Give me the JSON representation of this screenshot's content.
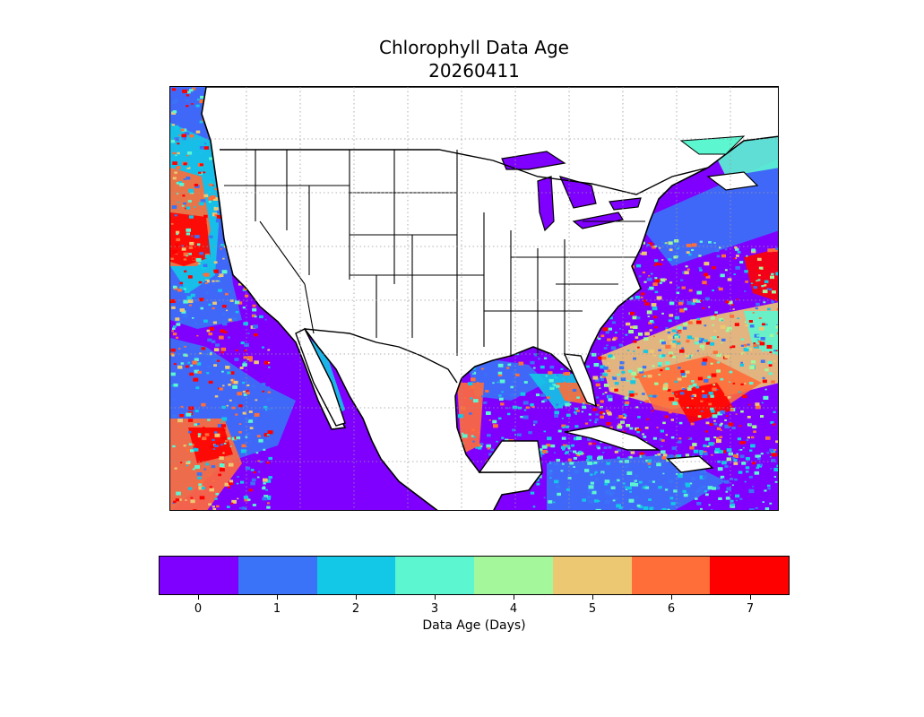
{
  "title": {
    "line1": "Chlorophyll Data Age",
    "line2": "20260411"
  },
  "map": {
    "region": "Continental United States, Mexico, Gulf of Mexico, Caribbean, Western Atlantic and Eastern Pacific",
    "land_color": "#ffffff",
    "coastline_color": "#000000",
    "gridlines": "dotted"
  },
  "colorbar": {
    "label": "Data Age (Days)",
    "ticks": [
      "0",
      "1",
      "2",
      "3",
      "4",
      "5",
      "6",
      "7"
    ],
    "colors": [
      "#7f00ff",
      "#3a73f7",
      "#12c8e6",
      "#5cf6d0",
      "#a4f79a",
      "#edc872",
      "#ff6d38",
      "#ff0000"
    ]
  }
}
